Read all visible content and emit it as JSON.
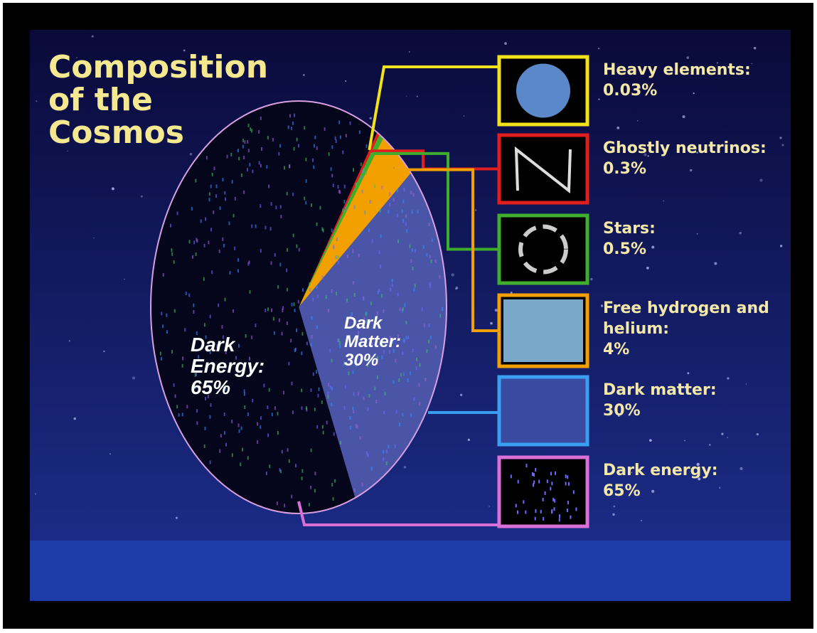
{
  "chart_data": {
    "type": "pie",
    "title": "Composition of the Cosmos",
    "categories": [
      "Heavy elements:",
      "Ghostly neutrinos:",
      "Stars:",
      "Free hydrogen and helium:",
      "Dark matter:",
      "Dark energy:"
    ],
    "values": [
      0.03,
      0.3,
      0.5,
      4,
      30,
      65
    ],
    "value_labels": [
      "0.03%",
      "0.3%",
      "0.5%",
      "4%",
      "30%",
      "65%"
    ],
    "colors": [
      "#f2e21c",
      "#e01e1e",
      "#3fae2e",
      "#f2a000",
      "#4a55a8",
      "#05051c"
    ],
    "legend_colors": [
      "#f2e21c",
      "#e01e1e",
      "#3fae2e",
      "#f2a000",
      "#3a9ff0",
      "#d870d8"
    ],
    "annotations": [
      "Dark Energy: 65%",
      "Dark Matter: 30%"
    ]
  }
}
